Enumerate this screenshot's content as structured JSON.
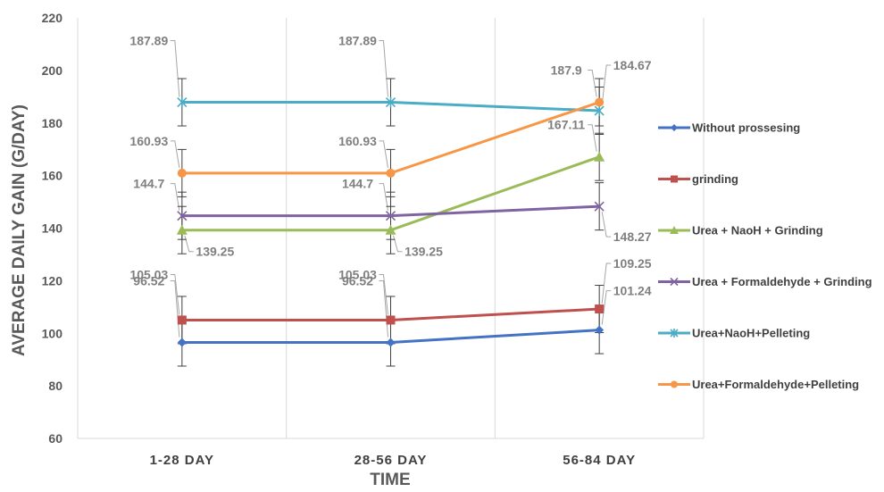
{
  "chart_data": {
    "type": "line",
    "title": "",
    "xlabel": "TIME",
    "ylabel": "AVERAGE DAILY GAIN (G/DAY)",
    "categories": [
      "1-28 DAY",
      "28-56 DAY",
      "56-84 DAY"
    ],
    "ylim": [
      60,
      220
    ],
    "yticks": [
      60,
      80,
      100,
      120,
      140,
      160,
      180,
      200,
      220
    ],
    "grid": "vertical",
    "legend_position": "right",
    "error_bars": true,
    "error_bar_size": 9,
    "series": [
      {
        "name": "Without prossesing",
        "values": [
          96.52,
          96.52,
          101.24
        ],
        "labels": [
          "96.52",
          "96.52",
          "101.24"
        ],
        "color": "#4472C4",
        "marker": "diamond"
      },
      {
        "name": "grinding",
        "values": [
          105.03,
          105.03,
          109.25
        ],
        "labels": [
          "105.03",
          "105.03",
          "109.25"
        ],
        "color": "#C0504D",
        "marker": "square"
      },
      {
        "name": "Urea + NaoH + Grinding",
        "values": [
          139.25,
          139.25,
          167.11
        ],
        "labels": [
          "139.25",
          "139.25",
          "167.11"
        ],
        "color": "#9BBB59",
        "marker": "triangle"
      },
      {
        "name": "Urea + Formaldehyde + Grinding",
        "values": [
          144.7,
          144.7,
          148.27
        ],
        "labels": [
          "144.7",
          "144.7",
          "148.27"
        ],
        "color": "#8064A2",
        "marker": "x"
      },
      {
        "name": "Urea+NaoH+Pelleting",
        "values": [
          187.89,
          187.89,
          184.67
        ],
        "labels": [
          "187.89",
          "187.89",
          "184.67"
        ],
        "color": "#4BACC6",
        "marker": "star"
      },
      {
        "name": "Urea+Formaldehyde+Pelleting",
        "values": [
          160.93,
          160.93,
          187.9
        ],
        "labels": [
          "160.93",
          "160.93",
          "187.9"
        ],
        "color": "#F79646",
        "marker": "circle"
      }
    ]
  }
}
